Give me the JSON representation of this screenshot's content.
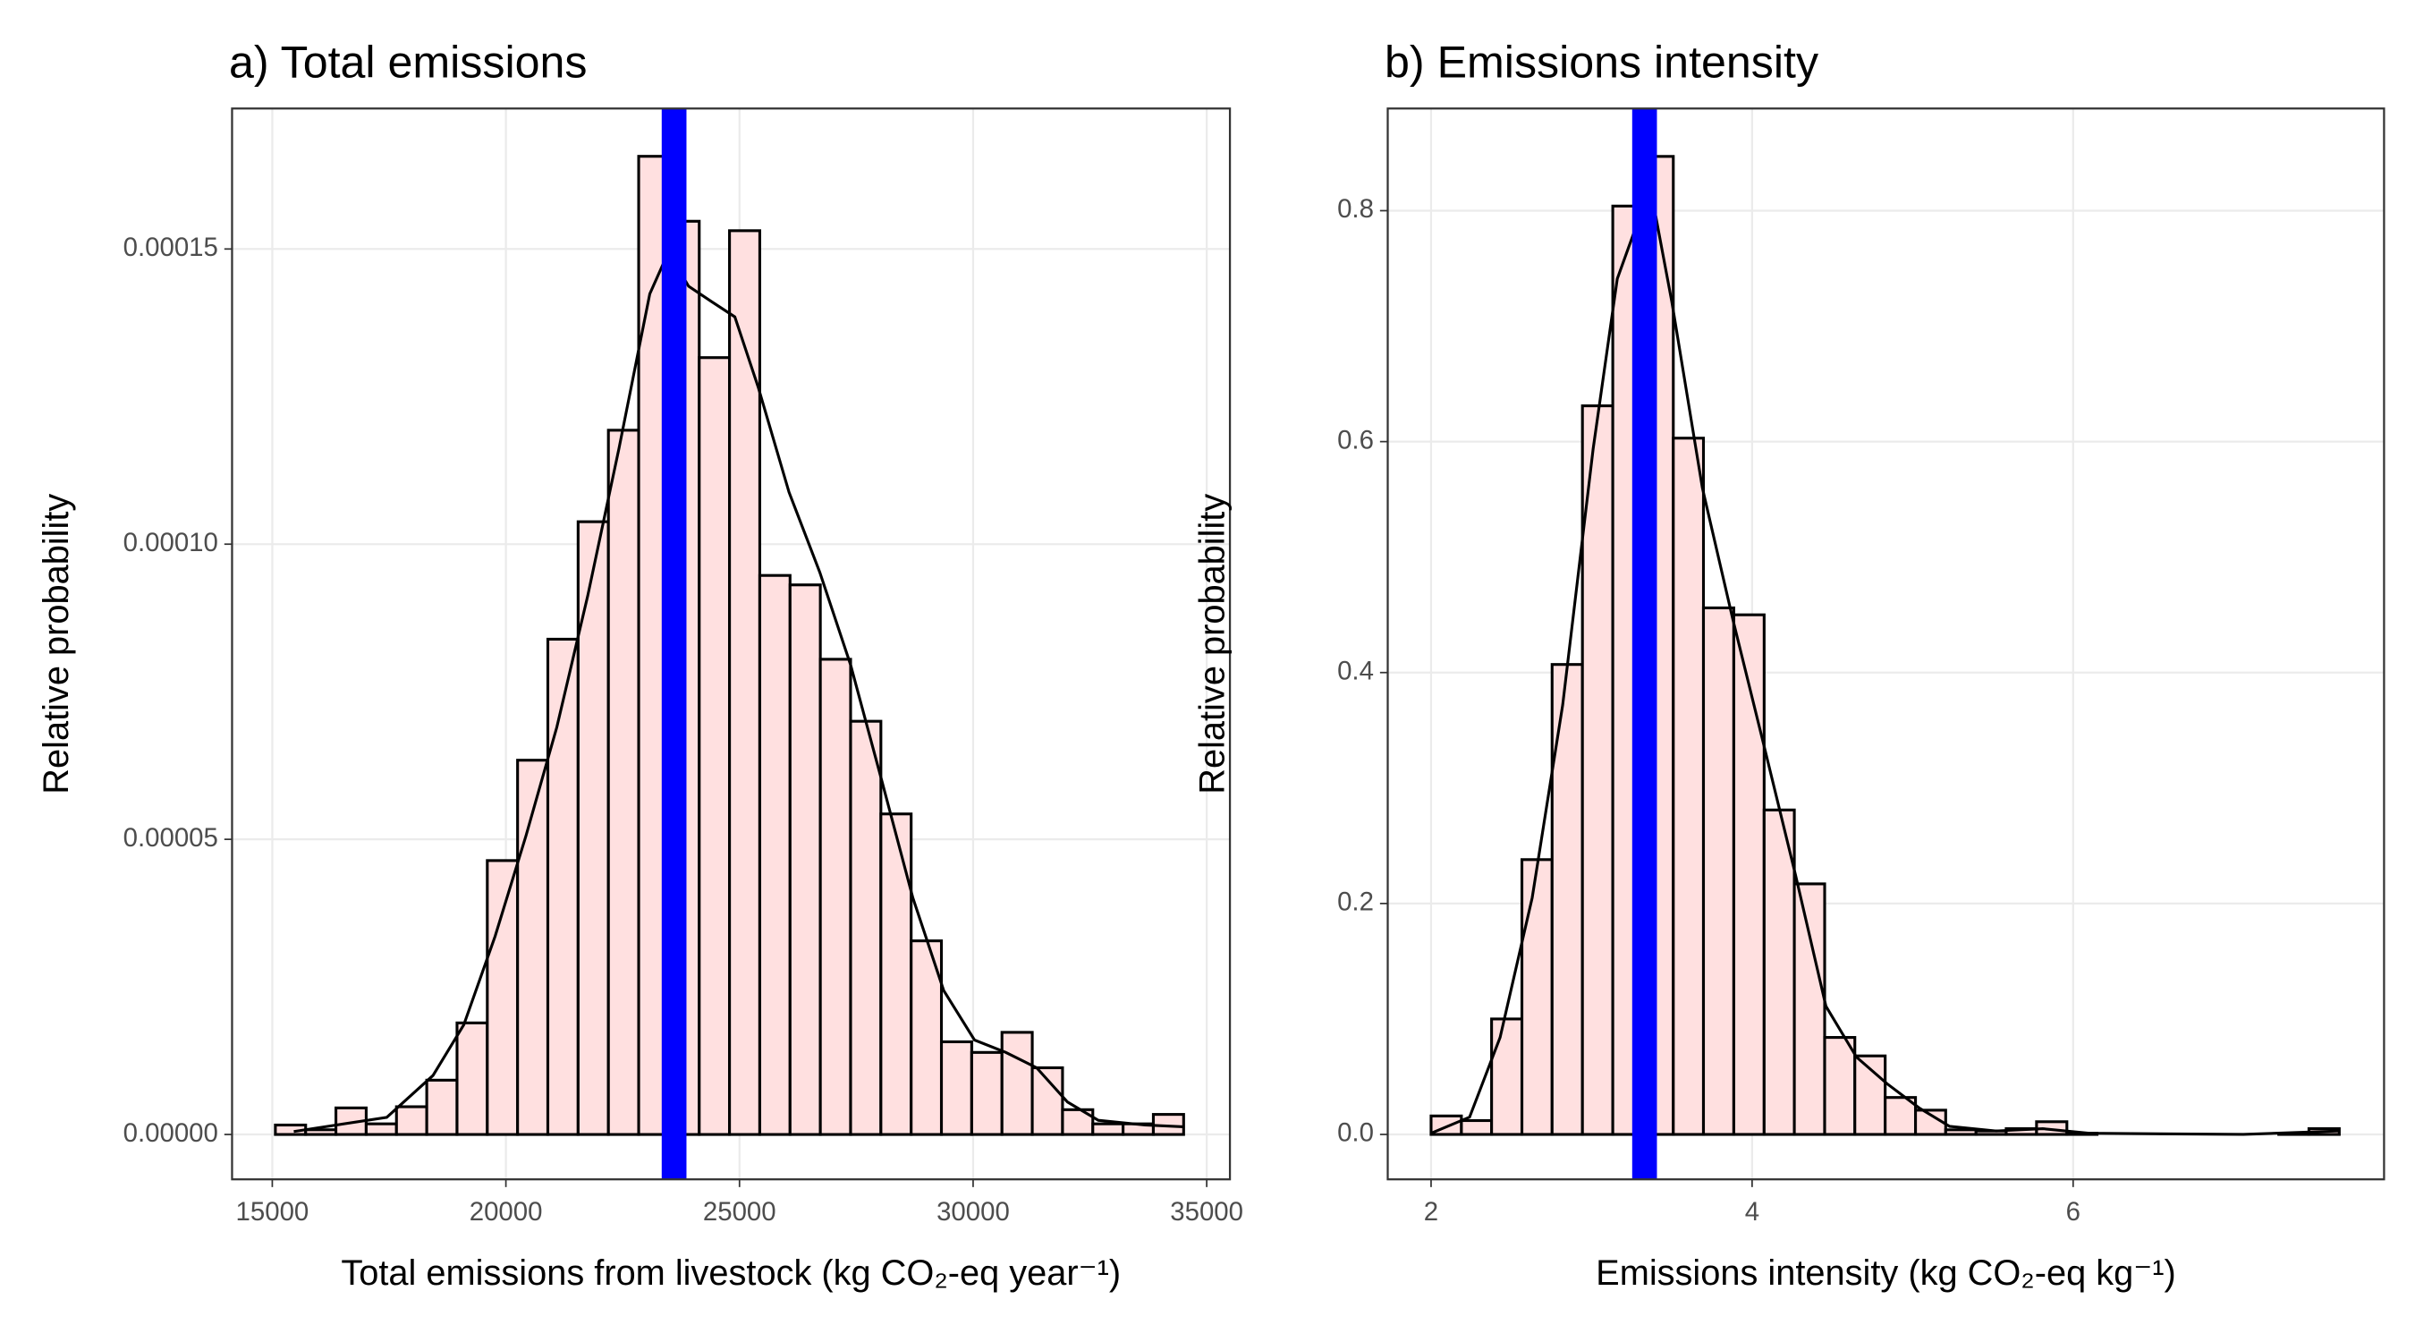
{
  "chart_data": [
    {
      "type": "histogram",
      "title": "a) Total emissions",
      "xlabel": "Total emissions from livestock (kg CO₂-eq year⁻¹)",
      "ylabel": "Relative probability",
      "bins": [
        15066,
        15714,
        16362,
        17010,
        17658,
        18306,
        18954,
        19602,
        20250,
        20898,
        21546,
        22194,
        22842,
        23490,
        24138,
        24786,
        25434,
        26082,
        26730,
        27378,
        28026,
        28674,
        29322,
        29970,
        30618,
        31266,
        31914,
        32562,
        33210,
        33858,
        34506
      ],
      "values": [
        1.6e-06,
        8e-07,
        4.5e-06,
        1.8e-06,
        4.7e-06,
        9.2e-06,
        1.89e-05,
        4.64e-05,
        6.34e-05,
        8.39e-05,
        0.0001038,
        0.0001193,
        0.0001657,
        0.0001547,
        0.0001316,
        0.0001531,
        9.47e-05,
        9.31e-05,
        8.05e-05,
        7e-05,
        5.43e-05,
        3.28e-05,
        1.57e-05,
        1.39e-05,
        1.73e-05,
        1.13e-05,
        4.2e-06,
        1.8e-06,
        1.8e-06,
        3.4e-06
      ],
      "color": "#ffe0e0",
      "edgecolor": "#000000",
      "density": {
        "x": [
          15460,
          17450,
          18440,
          19100,
          19770,
          20430,
          21090,
          21750,
          22420,
          23080,
          23480,
          23910,
          24400,
          24900,
          25400,
          26060,
          26720,
          27380,
          28050,
          28710,
          29370,
          30030,
          30700,
          31360,
          32020,
          32680,
          33680,
          34500
        ],
        "y": [
          5e-07,
          2.9e-06,
          1e-05,
          1.86e-05,
          3.36e-05,
          5.06e-05,
          6.9e-05,
          9.12e-05,
          0.0001162,
          0.0001424,
          0.0001495,
          0.0001437,
          0.0001411,
          0.0001385,
          0.0001266,
          0.0001088,
          9.52e-05,
          7.95e-05,
          5.98e-05,
          4.01e-05,
          2.44e-05,
          1.6e-05,
          1.39e-05,
          1.13e-05,
          5.5e-06,
          2.4e-06,
          1.6e-06,
          1.3e-06
        ]
      },
      "vline": {
        "value": 23600,
        "color": "#0000ff"
      },
      "xlim": [
        14139,
        35497
      ],
      "xticks": [
        15000,
        20000,
        25000,
        30000,
        35000
      ],
      "ylim": [
        -7.6e-06,
        0.0001738
      ],
      "yticks": [
        {
          "value": 0,
          "label": "0.00000"
        },
        {
          "value": 5e-05,
          "label": "0.00005"
        },
        {
          "value": 0.0001,
          "label": "0.00010"
        },
        {
          "value": 0.00015,
          "label": "0.00015"
        }
      ],
      "grid": true
    },
    {
      "type": "histogram",
      "title": "b) Emissions intensity",
      "xlabel": "Emissions intensity (kg CO₂-eq kg⁻¹)",
      "ylabel": "Relative probability",
      "bins": [
        2.0,
        2.189,
        2.377,
        2.566,
        2.754,
        2.943,
        3.132,
        3.32,
        3.509,
        3.697,
        3.886,
        4.075,
        4.263,
        4.452,
        4.64,
        4.829,
        5.018,
        5.206,
        5.395,
        5.583,
        5.772,
        5.961,
        6.149,
        6.338,
        6.526,
        6.715,
        6.904,
        7.092,
        7.281,
        7.469,
        7.658
      ],
      "values": [
        0.016,
        0.012,
        0.1,
        0.238,
        0.407,
        0.631,
        0.804,
        0.847,
        0.603,
        0.456,
        0.45,
        0.281,
        0.217,
        0.084,
        0.068,
        0.032,
        0.021,
        0.004,
        0.003,
        0.005,
        0.011,
        0.001,
        0,
        0,
        0,
        0,
        0,
        0,
        0.001,
        0.005
      ],
      "color": "#ffe0e0",
      "edgecolor": "#000000",
      "density": {
        "x": [
          2.0,
          2.24,
          2.43,
          2.63,
          2.82,
          3.01,
          3.16,
          3.3,
          3.4,
          3.5,
          3.69,
          3.88,
          4.07,
          4.27,
          4.46,
          4.65,
          4.84,
          5.04,
          5.23,
          5.52,
          5.81,
          6.1,
          7.06,
          7.66
        ],
        "y": [
          0.001,
          0.015,
          0.084,
          0.205,
          0.372,
          0.594,
          0.741,
          0.795,
          0.795,
          0.721,
          0.56,
          0.446,
          0.339,
          0.225,
          0.111,
          0.067,
          0.044,
          0.023,
          0.007,
          0.003,
          0.005,
          0.001,
          0,
          0.003
        ]
      },
      "vline": {
        "value": 3.33,
        "color": "#0000ff"
      },
      "xlim": [
        1.73,
        7.937
      ],
      "xticks": [
        2,
        4,
        6
      ],
      "ylim": [
        -0.0389,
        0.8885
      ],
      "yticks": [
        {
          "value": 0,
          "label": "0.0"
        },
        0.2,
        0.4,
        0.6,
        0.8
      ],
      "grid": true
    }
  ]
}
